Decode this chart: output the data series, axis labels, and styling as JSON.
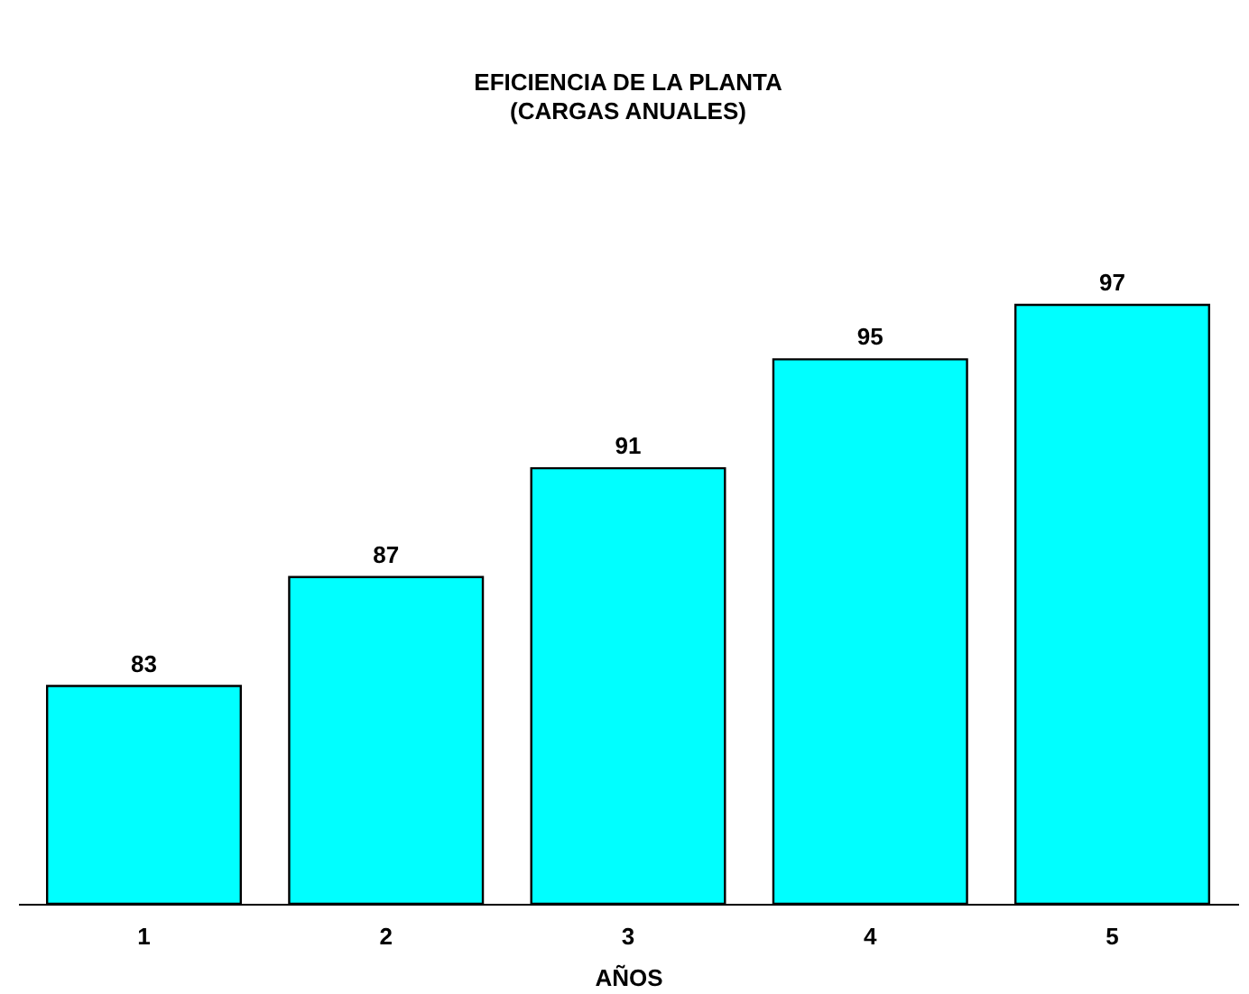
{
  "chart_data": {
    "type": "bar",
    "title": "EFICIENCIA DE LA PLANTA",
    "subtitle": "(CARGAS ANUALES)",
    "xlabel": "AÑOS",
    "categories": [
      "1",
      "2",
      "3",
      "4",
      "5"
    ],
    "values": [
      83,
      87,
      91,
      95,
      97
    ],
    "color": "#00ffff",
    "ylim": [
      75,
      97
    ],
    "data_labels": true,
    "tick_labels": "x",
    "grid": false
  }
}
